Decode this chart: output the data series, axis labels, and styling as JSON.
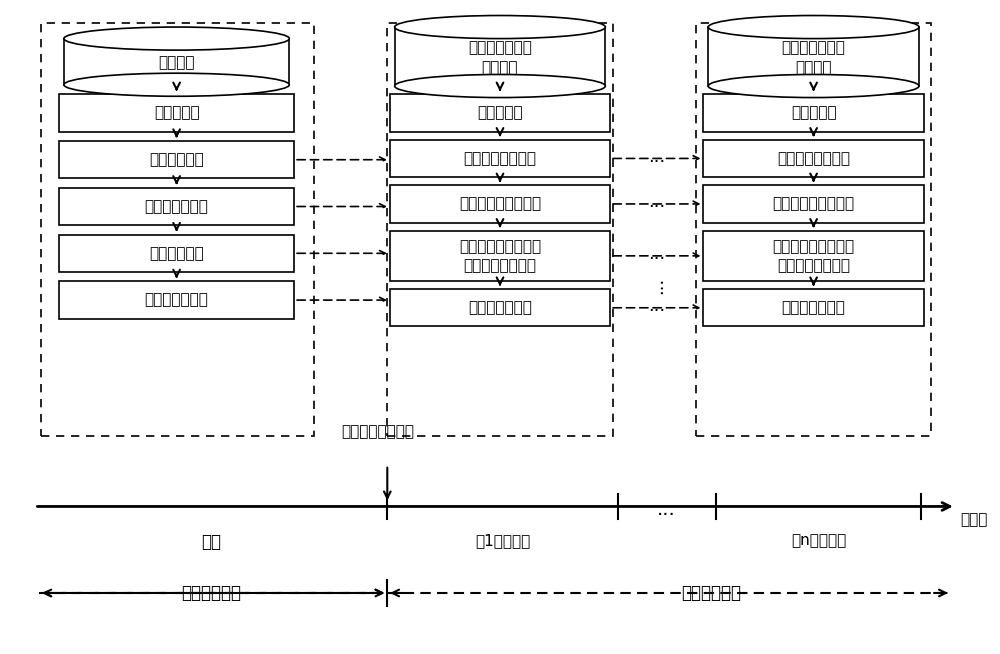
{
  "bg_color": "#ffffff",
  "fig_width": 10.0,
  "fig_height": 6.54,
  "db_label1": "历史数据",
  "db_label2": "固定滑动窗内的\n实时数据",
  "db_label3": "固定滑动窗内的\n实时数据",
  "col1_boxes": [
    "数据预处理",
    "模型输入选择",
    "模型超参数寻优",
    "模型参数训练",
    "参数重要性计算"
  ],
  "col2_boxes": [
    "数据预处理",
    "保持模型输入一致",
    "保持模型超参数一致",
    "使用弹性权重固化对\n模型参数进行微调",
    "参数重要性更新"
  ],
  "col3_boxes": [
    "数据预处理",
    "保持模型输入一致",
    "保持模型超参数一致",
    "使用弹性权重固化对\n模型参数进行微调",
    "参数重要性更新"
  ],
  "timeline_label_start": "开始进行负荷预测",
  "timeline_past": "过去",
  "timeline_w1": "第1个滑动窗",
  "timeline_wn": "第n个滑动窗",
  "timeline_axis": "时间轴",
  "label_offline": "模型离线训练",
  "label_realtime": "模型实时微调"
}
